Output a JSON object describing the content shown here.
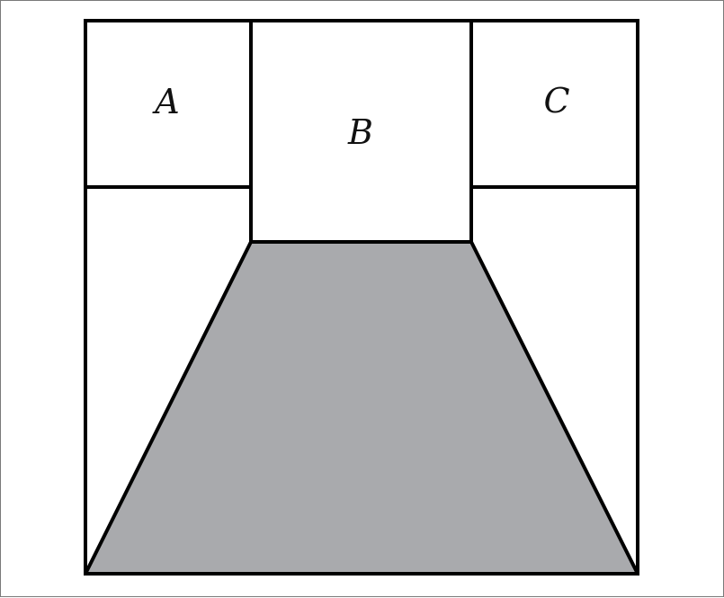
{
  "diagram": {
    "labels": {
      "a": "A",
      "b": "B",
      "c": "C"
    },
    "colors": {
      "stroke": "#000000",
      "shaded_fill": "#a9aaad",
      "background": "#ffffff"
    }
  }
}
